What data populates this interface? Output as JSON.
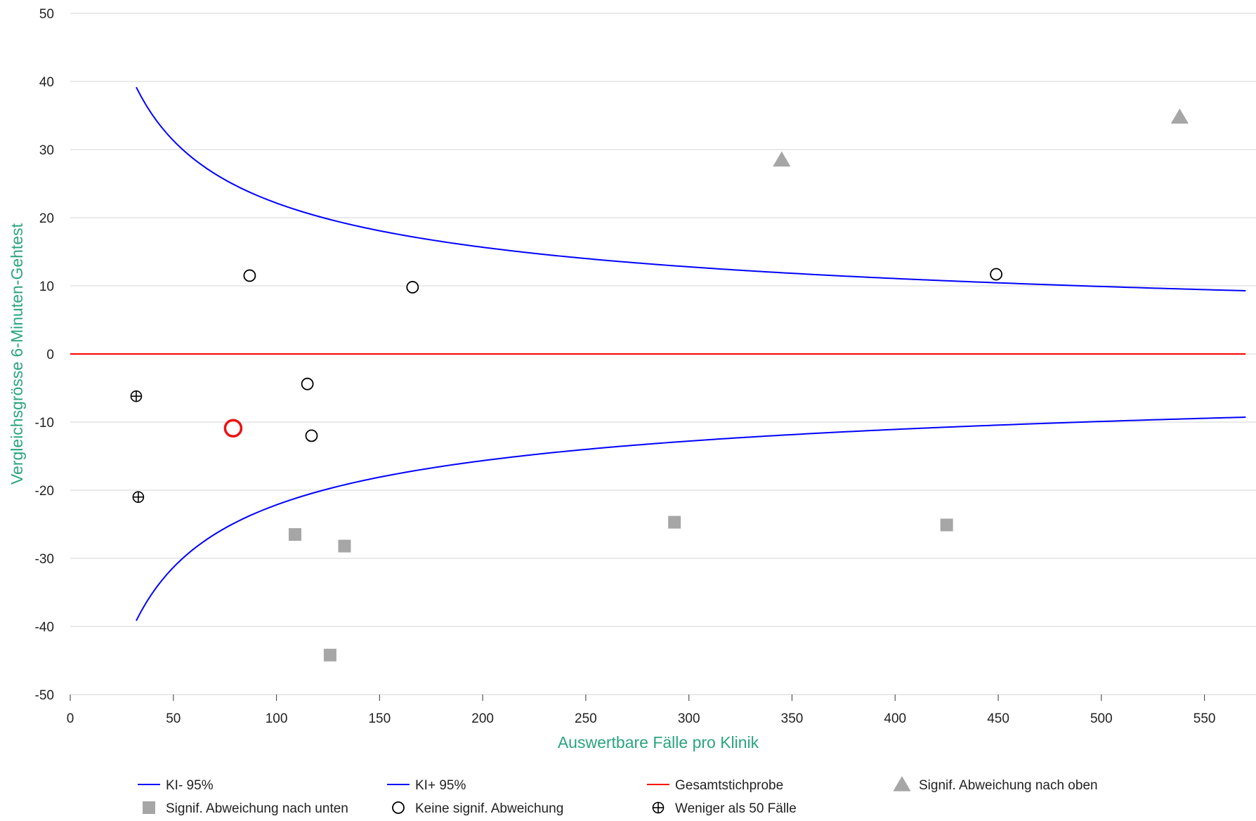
{
  "chart_data": {
    "type": "scatter",
    "xlabel": "Auswertbare Fälle pro Klinik",
    "ylabel": "Vergleichsgrösse 6-Minuten-Gehtest",
    "xlim": [
      0,
      575
    ],
    "ylim": [
      -50,
      50
    ],
    "x_ticks": [
      "0",
      "50",
      "100",
      "150",
      "200",
      "250",
      "300",
      "350",
      "400",
      "450",
      "500",
      "550"
    ],
    "y_ticks": [
      "50",
      "40",
      "30",
      "20",
      "10",
      "0",
      "-10",
      "-20",
      "-30",
      "-40",
      "-50"
    ],
    "grid": "horizontal",
    "legend_position": "bottom",
    "colors": {
      "ci": "#0000ff",
      "overall": "#ff0000",
      "significant": "#a6a6a6",
      "marker_outline": "#000000",
      "highlight": "#ee1111",
      "grid": "#dddddd",
      "axis_title": "#2aa47e"
    },
    "curves": [
      {
        "name": "KI- 95%",
        "constant": -221.5,
        "x_start": 32,
        "x_end": 570
      },
      {
        "name": "KI+ 95%",
        "constant": 221.5,
        "x_start": 32,
        "x_end": 570
      }
    ],
    "reference_line": {
      "name": "Gesamtstichprobe",
      "y": 0,
      "x_start": 0,
      "x_end": 570
    },
    "series": [
      {
        "name": "Signif. Abweichung nach oben",
        "marker": "triangle",
        "points": [
          [
            345,
            28.5
          ],
          [
            538,
            34.8
          ]
        ]
      },
      {
        "name": "Signif. Abweichung nach unten",
        "marker": "square",
        "points": [
          [
            109,
            -26.5
          ],
          [
            133,
            -28.2
          ],
          [
            126,
            -44.2
          ],
          [
            293,
            -24.7
          ],
          [
            425,
            -25.1
          ]
        ]
      },
      {
        "name": "Keine signif. Abweichung",
        "marker": "circle",
        "points": [
          [
            87,
            11.5
          ],
          [
            166,
            9.8
          ],
          [
            449,
            11.7
          ],
          [
            115,
            -4.4
          ],
          [
            117,
            -12.0
          ]
        ]
      },
      {
        "name": "Weniger als 50 Fälle",
        "marker": "circle-plus",
        "points": [
          [
            32,
            -6.2
          ],
          [
            33,
            -21.0
          ]
        ]
      }
    ],
    "highlight_point": [
      79,
      -10.9
    ],
    "legend": [
      [
        "KI- 95%",
        "KI+ 95%",
        "Gesamtstichprobe",
        "Signif. Abweichung nach oben"
      ],
      [
        "Signif. Abweichung nach unten",
        "Keine signif. Abweichung",
        "Weniger als 50 Fälle"
      ]
    ]
  }
}
